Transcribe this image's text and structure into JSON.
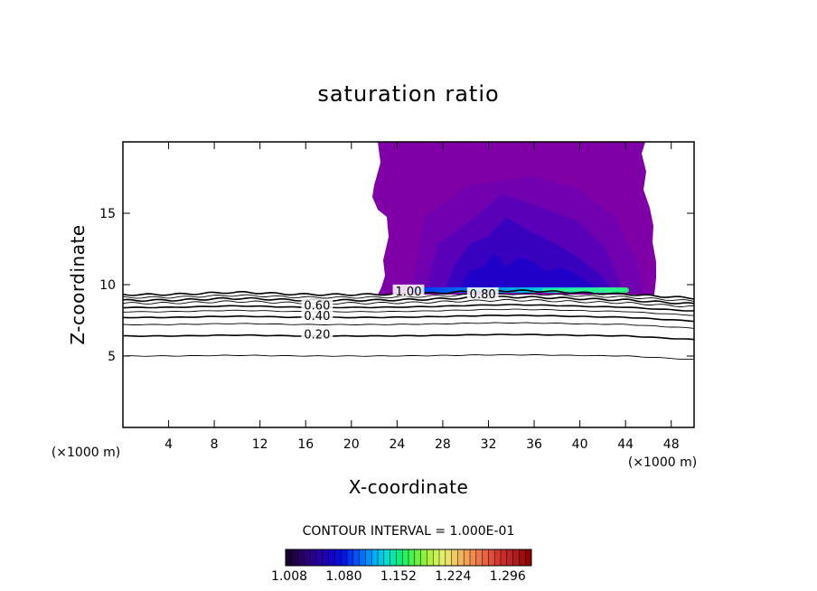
{
  "chart_data": {
    "type": "contour",
    "title": "saturation ratio",
    "xlabel": "X-coordinate",
    "ylabel": "Z-coordinate",
    "x_unit": "(×1000 m)",
    "y_unit": "(×1000 m)",
    "xlim": [
      0,
      50
    ],
    "ylim": [
      0,
      20
    ],
    "x_ticks": [
      4,
      8,
      12,
      16,
      20,
      24,
      28,
      32,
      36,
      40,
      44,
      48
    ],
    "y_ticks": [
      5,
      10,
      15
    ],
    "contour_interval_text": "CONTOUR INTERVAL = 1.000E-01",
    "contour_lines": [
      {
        "level": 0.1,
        "z": 5.0
      },
      {
        "level": 0.2,
        "z": 6.4
      },
      {
        "level": 0.3,
        "z": 7.2
      },
      {
        "level": 0.4,
        "z": 7.7
      },
      {
        "level": 0.5,
        "z": 8.1
      },
      {
        "level": 0.6,
        "z": 8.4
      },
      {
        "level": 0.7,
        "z": 8.7
      },
      {
        "level": 0.8,
        "z": 8.9
      },
      {
        "level": 0.9,
        "z": 9.1
      },
      {
        "level": 1.0,
        "z": 9.3
      }
    ],
    "contour_labels": [
      {
        "text": "0.20",
        "x": 17.0,
        "z": 6.5
      },
      {
        "text": "0.40",
        "x": 17.0,
        "z": 7.8
      },
      {
        "text": "0.60",
        "x": 17.0,
        "z": 8.5
      },
      {
        "text": "1.00",
        "x": 25.0,
        "z": 9.5
      },
      {
        "text": "0.80",
        "x": 31.5,
        "z": 9.3
      }
    ],
    "supersaturated_region": {
      "x_range": [
        22.3,
        46.6
      ],
      "z_range": [
        9.3,
        20.0
      ],
      "max_value_near_z": 9.6
    },
    "colorbar": {
      "min": 1.008,
      "max": 1.332,
      "tick_labels": [
        "1.008",
        "1.080",
        "1.152",
        "1.224",
        "1.296"
      ],
      "colors": [
        "#1a0030",
        "#28006a",
        "#2a009a",
        "#1400c8",
        "#0018e8",
        "#0060ff",
        "#00a8ff",
        "#00e0d0",
        "#10f070",
        "#60f040",
        "#b0f040",
        "#e8f070",
        "#f0c060",
        "#f09050",
        "#e86040",
        "#d03030",
        "#b02020",
        "#900000"
      ],
      "fill_colors": {
        "outer": "#8000a8",
        "mid": "#6a00b8",
        "inner": "#4a00c0",
        "core": "#2800c8",
        "deep": "#1000d0",
        "band_cyan": "#00c8e0",
        "band_green": "#30f090"
      }
    }
  }
}
